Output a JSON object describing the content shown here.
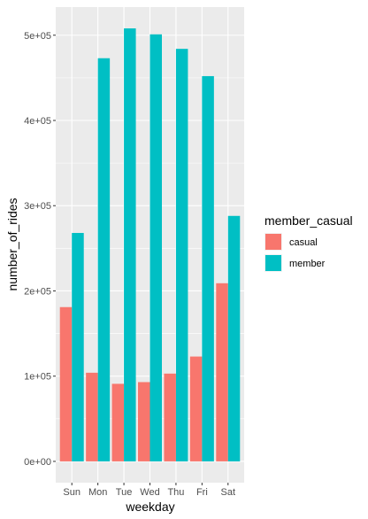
{
  "chart_data": {
    "type": "bar",
    "xlabel": "weekday",
    "ylabel": "number_of_rides",
    "categories": [
      "Sun",
      "Mon",
      "Tue",
      "Wed",
      "Thu",
      "Fri",
      "Sat"
    ],
    "series": [
      {
        "name": "casual",
        "values": [
          181000,
          104000,
          91000,
          93000,
          103000,
          123000,
          209000
        ]
      },
      {
        "name": "member",
        "values": [
          268000,
          473000,
          508000,
          501000,
          484000,
          452000,
          288000
        ]
      }
    ],
    "yticks": [
      0,
      100000,
      200000,
      300000,
      400000,
      500000
    ],
    "ytick_labels": [
      "0e+00",
      "1e+05",
      "2e+05",
      "3e+05",
      "4e+05",
      "5e+05"
    ],
    "ylim": [
      -25000,
      533000
    ],
    "grid": true,
    "legend": {
      "title": "member_casual",
      "placement": "right",
      "entries": [
        "casual",
        "member"
      ]
    },
    "colors": {
      "casual": "#F8766D",
      "member": "#00BFC4",
      "panel": "#EBEBEB",
      "grid": "#FFFFFF"
    }
  }
}
